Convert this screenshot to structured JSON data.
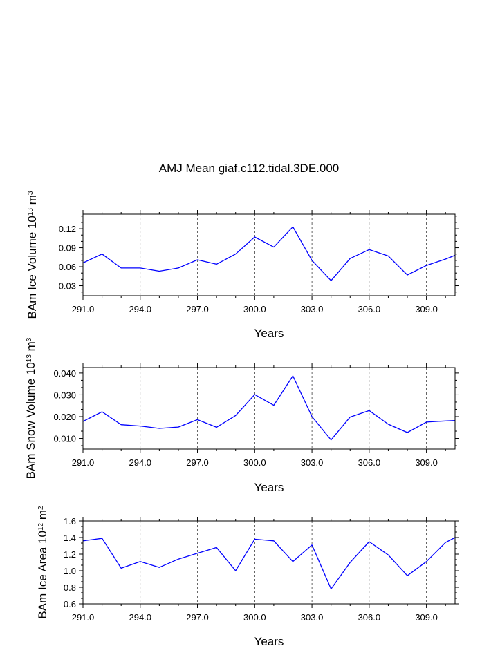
{
  "title": "AMJ Mean giaf.c112.tidal.3DE.000",
  "colors": {
    "line": "#0000ff",
    "axis": "#000000",
    "grid": "#000000"
  },
  "chart_data": [
    {
      "type": "line",
      "name": "ice-volume",
      "ylabel_main": "BAm Ice Volume 10",
      "ylabel_exp": "13",
      "ylabel_unit": "m",
      "ylabel_unit_exp": "3",
      "xlabel": "Years",
      "xlim": [
        291,
        310.5
      ],
      "ylim": [
        0.0142,
        0.143
      ],
      "xticks": [
        291,
        294,
        297,
        300,
        303,
        306,
        309
      ],
      "xtick_labels": [
        "291.0",
        "294.0",
        "297.0",
        "300.0",
        "303.0",
        "306.0",
        "309.0"
      ],
      "yticks": [
        0.03,
        0.06,
        0.09,
        0.12
      ],
      "ytick_labels": [
        "0.03",
        "0.06",
        "0.09",
        "0.12"
      ],
      "x": [
        291,
        292,
        293,
        294,
        295,
        296,
        297,
        298,
        299,
        300,
        301,
        302,
        303,
        304,
        305,
        306,
        307,
        308,
        309,
        310,
        310.5
      ],
      "values": [
        0.066,
        0.08,
        0.058,
        0.058,
        0.053,
        0.058,
        0.071,
        0.064,
        0.08,
        0.107,
        0.091,
        0.123,
        0.07,
        0.038,
        0.073,
        0.087,
        0.077,
        0.047,
        0.062,
        0.072,
        0.078
      ]
    },
    {
      "type": "line",
      "name": "snow-volume",
      "ylabel_main": "BAm Snow Volume 10",
      "ylabel_exp": "13",
      "ylabel_unit": "m",
      "ylabel_unit_exp": "3",
      "xlabel": "Years",
      "xlim": [
        291,
        310.5
      ],
      "ylim": [
        0.0051,
        0.0425
      ],
      "xticks": [
        291,
        294,
        297,
        300,
        303,
        306,
        309
      ],
      "xtick_labels": [
        "291.0",
        "294.0",
        "297.0",
        "300.0",
        "303.0",
        "306.0",
        "309.0"
      ],
      "yticks": [
        0.01,
        0.02,
        0.03,
        0.04
      ],
      "ytick_labels": [
        "0.010",
        "0.020",
        "0.030",
        "0.040"
      ],
      "x": [
        291,
        292,
        293,
        294,
        295,
        296,
        297,
        298,
        299,
        300,
        301,
        302,
        303,
        304,
        305,
        306,
        307,
        308,
        309,
        310,
        310.5
      ],
      "values": [
        0.0178,
        0.0222,
        0.0163,
        0.0157,
        0.0146,
        0.0152,
        0.0186,
        0.0151,
        0.0205,
        0.0301,
        0.0252,
        0.0387,
        0.02,
        0.0093,
        0.0198,
        0.0228,
        0.0165,
        0.0127,
        0.0175,
        0.018,
        0.0182
      ]
    },
    {
      "type": "line",
      "name": "ice-area",
      "ylabel_main": "BAm Ice Area 10",
      "ylabel_exp": "12",
      "ylabel_unit": "m",
      "ylabel_unit_exp": "2",
      "xlabel": "Years",
      "xlim": [
        291,
        310.5
      ],
      "ylim": [
        0.6,
        1.6
      ],
      "xticks": [
        291,
        294,
        297,
        300,
        303,
        306,
        309
      ],
      "xtick_labels": [
        "291.0",
        "294.0",
        "297.0",
        "300.0",
        "303.0",
        "306.0",
        "309.0"
      ],
      "yticks": [
        0.6,
        0.8,
        1.0,
        1.2,
        1.4,
        1.6
      ],
      "ytick_labels": [
        "0.6",
        "0.8",
        "1.0",
        "1.2",
        "1.4",
        "1.6"
      ],
      "x": [
        291,
        292,
        293,
        294,
        295,
        296,
        297,
        298,
        299,
        300,
        301,
        302,
        303,
        304,
        305,
        306,
        307,
        308,
        309,
        310,
        310.5
      ],
      "values": [
        1.36,
        1.39,
        1.03,
        1.11,
        1.04,
        1.14,
        1.21,
        1.28,
        1.0,
        1.38,
        1.36,
        1.11,
        1.31,
        0.78,
        1.1,
        1.35,
        1.19,
        0.94,
        1.11,
        1.34,
        1.4
      ]
    }
  ]
}
